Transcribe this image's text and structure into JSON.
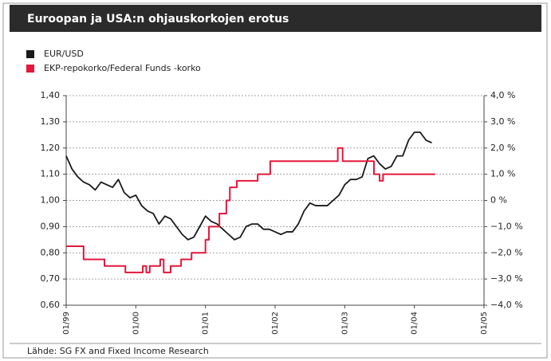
{
  "chart_data": {
    "type": "line",
    "title": "Euroopan ja USA:n ohjauskorkojen erotus",
    "source": "Lähde: SG FX and Fixed Income Research",
    "xlim": [
      1999,
      2005
    ],
    "xticks": [
      {
        "value": 1999,
        "label": "01/99"
      },
      {
        "value": 2000,
        "label": "01/00"
      },
      {
        "value": 2001,
        "label": "01/01"
      },
      {
        "value": 2002,
        "label": "01/02"
      },
      {
        "value": 2003,
        "label": "01/03"
      },
      {
        "value": 2004,
        "label": "01/04"
      },
      {
        "value": 2005,
        "label": "01/05"
      }
    ],
    "ylim": [
      0.6,
      1.4
    ],
    "yticks": [
      {
        "value": 0.6,
        "label": "0,60"
      },
      {
        "value": 0.7,
        "label": "0,70"
      },
      {
        "value": 0.8,
        "label": "0,80"
      },
      {
        "value": 0.9,
        "label": "0,90"
      },
      {
        "value": 1.0,
        "label": "1,00"
      },
      {
        "value": 1.1,
        "label": "1,10"
      },
      {
        "value": 1.2,
        "label": "1,20"
      },
      {
        "value": 1.3,
        "label": "1,30"
      },
      {
        "value": 1.4,
        "label": "1,40"
      }
    ],
    "y2lim": [
      -4,
      4
    ],
    "y2ticks": [
      {
        "value": -4,
        "label": "−4,0 %"
      },
      {
        "value": -3,
        "label": "−3,0 %"
      },
      {
        "value": -2,
        "label": "−2,0 %"
      },
      {
        "value": -1,
        "label": "−1,0 %"
      },
      {
        "value": 0,
        "label": "0 %"
      },
      {
        "value": 1,
        "label": "1,0 %"
      },
      {
        "value": 2,
        "label": "2,0 %"
      },
      {
        "value": 3,
        "label": "3,0 %"
      },
      {
        "value": 4,
        "label": "4,0 %"
      }
    ],
    "grid": true,
    "series": [
      {
        "name": "EUR/USD",
        "color": "#1a1a1a",
        "axis": "y",
        "step": false,
        "x": [
          1999.0,
          1999.083,
          1999.167,
          1999.25,
          1999.333,
          1999.417,
          1999.5,
          1999.583,
          1999.667,
          1999.75,
          1999.833,
          1999.917,
          2000.0,
          2000.083,
          2000.167,
          2000.25,
          2000.333,
          2000.417,
          2000.5,
          2000.583,
          2000.667,
          2000.75,
          2000.833,
          2000.917,
          2001.0,
          2001.083,
          2001.167,
          2001.25,
          2001.333,
          2001.417,
          2001.5,
          2001.583,
          2001.667,
          2001.75,
          2001.833,
          2001.917,
          2002.0,
          2002.083,
          2002.167,
          2002.25,
          2002.333,
          2002.417,
          2002.5,
          2002.583,
          2002.667,
          2002.75,
          2002.833,
          2002.917,
          2003.0,
          2003.083,
          2003.167,
          2003.25,
          2003.333,
          2003.417,
          2003.5,
          2003.583,
          2003.667,
          2003.75,
          2003.833,
          2003.917,
          2004.0,
          2004.083,
          2004.167,
          2004.25
        ],
        "values": [
          1.17,
          1.12,
          1.09,
          1.07,
          1.06,
          1.04,
          1.07,
          1.06,
          1.05,
          1.08,
          1.03,
          1.01,
          1.02,
          0.98,
          0.96,
          0.95,
          0.91,
          0.94,
          0.93,
          0.9,
          0.87,
          0.85,
          0.86,
          0.9,
          0.94,
          0.92,
          0.91,
          0.89,
          0.87,
          0.85,
          0.86,
          0.9,
          0.91,
          0.91,
          0.89,
          0.89,
          0.88,
          0.87,
          0.88,
          0.88,
          0.91,
          0.96,
          0.99,
          0.98,
          0.98,
          0.98,
          1.0,
          1.02,
          1.06,
          1.08,
          1.08,
          1.09,
          1.16,
          1.17,
          1.14,
          1.12,
          1.13,
          1.17,
          1.17,
          1.23,
          1.26,
          1.26,
          1.23,
          1.22
        ]
      },
      {
        "name": "EKP-repokorko/Federal Funds -korko",
        "color": "#e4173c",
        "axis": "y2",
        "step": true,
        "x": [
          1999.0,
          1999.25,
          1999.55,
          1999.85,
          2000.1,
          2000.15,
          2000.2,
          2000.35,
          2000.4,
          2000.5,
          2000.65,
          2000.8,
          2001.0,
          2001.05,
          2001.2,
          2001.3,
          2001.35,
          2001.45,
          2001.75,
          2001.93,
          2002.9,
          2002.97,
          2003.42,
          2003.5,
          2003.55,
          2004.3
        ],
        "values": [
          -1.75,
          -2.25,
          -2.5,
          -2.75,
          -2.5,
          -2.75,
          -2.5,
          -2.25,
          -2.75,
          -2.5,
          -2.25,
          -2.0,
          -1.5,
          -1.0,
          -0.5,
          0,
          0.5,
          0.75,
          1.0,
          1.5,
          2.0,
          1.5,
          1.0,
          0.75,
          1.0,
          1.0
        ]
      }
    ]
  }
}
